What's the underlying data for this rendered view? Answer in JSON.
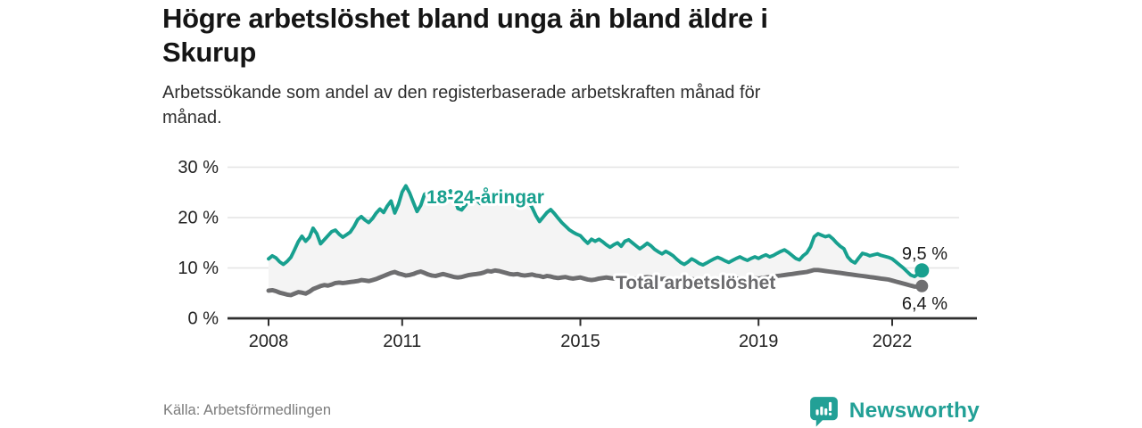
{
  "header": {
    "title": "Högre arbetslöshet bland unga än bland äldre i\nSkurup",
    "subtitle": "Arbetssökande som andel av den registerbaserade arbetskraften månad för\nmånad."
  },
  "footer": {
    "source": "Källa: Arbetsförmedlingen",
    "brand": "Newsworthy"
  },
  "colors": {
    "youth_line": "#18A08F",
    "total_line": "#6E6E70",
    "total_label": "#6b6b6e",
    "area_fill": "#f4f4f4",
    "gridline": "#e4e4e4",
    "axis": "#2e2e2e",
    "tick_text": "#222222",
    "end_label_text": "#1a1a1a",
    "logo_teal": "#22A096"
  },
  "chart_data": {
    "type": "line",
    "title": "Högre arbetslöshet bland unga än bland äldre i Skurup",
    "subtitle": "Arbetssökande som andel av den registerbaserade arbetskraften månad för månad.",
    "x_unit": "month",
    "x_start": "2008-01",
    "x_end": "2022-09",
    "x_tick_years": [
      2008,
      2011,
      2015,
      2019,
      2022
    ],
    "x_tick_labels": [
      "2008",
      "2011",
      "2015",
      "2019",
      "2022"
    ],
    "y_tick_values": [
      0,
      10,
      20,
      30
    ],
    "y_tick_labels": [
      "0 %",
      "10 %",
      "20 %",
      "30 %"
    ],
    "y_gridlines": [
      10,
      20,
      30
    ],
    "ylim": [
      0,
      30
    ],
    "grid": "horizontal",
    "legend": "inline-labels",
    "area_between_series": true,
    "series": [
      {
        "name": "18-24-åringar",
        "color": "#18A08F",
        "end_label": "9,5 %",
        "end_value": 9.5,
        "values": [
          11.8,
          12.4,
          12.0,
          11.2,
          10.7,
          11.3,
          12.1,
          13.6,
          15.2,
          16.3,
          15.3,
          16.1,
          17.9,
          16.8,
          14.8,
          15.6,
          16.4,
          17.2,
          17.5,
          16.7,
          16.1,
          16.6,
          17.1,
          18.2,
          19.6,
          20.2,
          19.5,
          19.0,
          19.8,
          20.9,
          21.7,
          21.0,
          22.3,
          23.3,
          20.9,
          22.6,
          25.1,
          26.3,
          24.9,
          23.0,
          21.2,
          22.4,
          24.6,
          25.1,
          24.0,
          23.2,
          23.6,
          24.2,
          24.8,
          25.3,
          24.1,
          21.8,
          21.5,
          22.4,
          23.4,
          24.2,
          23.5,
          22.8,
          23.3,
          23.9,
          24.4,
          24.8,
          24.2,
          23.5,
          22.9,
          23.4,
          24.1,
          24.6,
          23.9,
          24.3,
          23.2,
          22.0,
          20.4,
          19.2,
          20.1,
          21.0,
          21.6,
          20.8,
          19.9,
          19.0,
          18.3,
          17.6,
          17.1,
          16.7,
          16.4,
          15.6,
          14.9,
          15.7,
          15.3,
          15.7,
          15.2,
          14.6,
          14.1,
          14.6,
          15.0,
          14.3,
          15.3,
          15.6,
          15.0,
          14.4,
          13.8,
          14.3,
          14.9,
          14.4,
          13.7,
          13.2,
          12.8,
          13.3,
          12.9,
          12.4,
          11.7,
          11.1,
          10.7,
          11.2,
          11.8,
          11.4,
          10.9,
          10.6,
          11.0,
          11.4,
          11.8,
          12.1,
          11.8,
          11.4,
          11.1,
          11.5,
          11.9,
          12.2,
          11.8,
          11.5,
          11.9,
          12.2,
          11.9,
          12.3,
          12.6,
          12.2,
          12.5,
          12.9,
          13.3,
          13.6,
          13.1,
          12.5,
          11.9,
          11.6,
          12.4,
          13.0,
          14.2,
          16.2,
          16.8,
          16.5,
          16.2,
          16.4,
          15.8,
          15.0,
          14.3,
          13.8,
          12.2,
          11.4,
          11.0,
          12.0,
          12.9,
          12.7,
          12.4,
          12.6,
          12.8,
          12.5,
          12.3,
          12.1,
          11.8,
          11.2,
          10.6,
          10.0,
          9.3,
          8.6,
          8.3,
          8.8,
          9.5
        ]
      },
      {
        "name": "Total arbetslöshet",
        "color": "#6E6E70",
        "end_label": "6,4 %",
        "end_value": 6.4,
        "values": [
          5.5,
          5.6,
          5.4,
          5.1,
          4.9,
          4.7,
          4.6,
          4.9,
          5.2,
          5.1,
          4.9,
          5.3,
          5.8,
          6.1,
          6.4,
          6.6,
          6.5,
          6.7,
          7.0,
          7.1,
          7.0,
          7.1,
          7.2,
          7.3,
          7.4,
          7.6,
          7.5,
          7.4,
          7.6,
          7.8,
          8.1,
          8.4,
          8.7,
          9.0,
          9.2,
          8.9,
          8.7,
          8.5,
          8.6,
          8.8,
          9.1,
          9.3,
          9.0,
          8.7,
          8.5,
          8.4,
          8.6,
          8.8,
          8.6,
          8.4,
          8.2,
          8.1,
          8.2,
          8.4,
          8.6,
          8.7,
          8.8,
          8.9,
          9.1,
          9.4,
          9.3,
          9.5,
          9.4,
          9.2,
          9.0,
          8.8,
          8.7,
          8.8,
          8.6,
          8.5,
          8.6,
          8.7,
          8.5,
          8.4,
          8.2,
          8.4,
          8.3,
          8.1,
          8.0,
          8.1,
          8.2,
          8.0,
          7.9,
          8.0,
          8.1,
          7.9,
          7.7,
          7.6,
          7.7,
          7.9,
          8.0,
          8.1,
          8.0,
          7.9,
          8.0,
          8.1,
          8.0,
          7.9,
          7.8,
          7.9,
          8.0,
          8.1,
          8.2,
          8.1,
          8.0,
          7.9,
          7.8,
          7.9,
          7.8,
          7.6,
          7.5,
          7.4,
          7.5,
          7.7,
          7.8,
          7.7,
          7.6,
          7.5,
          7.6,
          7.7,
          7.8,
          7.7,
          7.6,
          7.5,
          7.6,
          7.8,
          7.9,
          7.8,
          7.7,
          7.8,
          7.9,
          8.0,
          7.9,
          8.0,
          8.1,
          8.2,
          8.3,
          8.4,
          8.5,
          8.6,
          8.7,
          8.8,
          8.9,
          9.0,
          9.1,
          9.2,
          9.4,
          9.6,
          9.6,
          9.5,
          9.4,
          9.3,
          9.2,
          9.1,
          9.0,
          8.9,
          8.8,
          8.7,
          8.6,
          8.5,
          8.4,
          8.3,
          8.2,
          8.1,
          8.0,
          7.9,
          7.8,
          7.7,
          7.5,
          7.3,
          7.1,
          6.9,
          6.7,
          6.5,
          6.3,
          6.3,
          6.4
        ]
      }
    ]
  }
}
